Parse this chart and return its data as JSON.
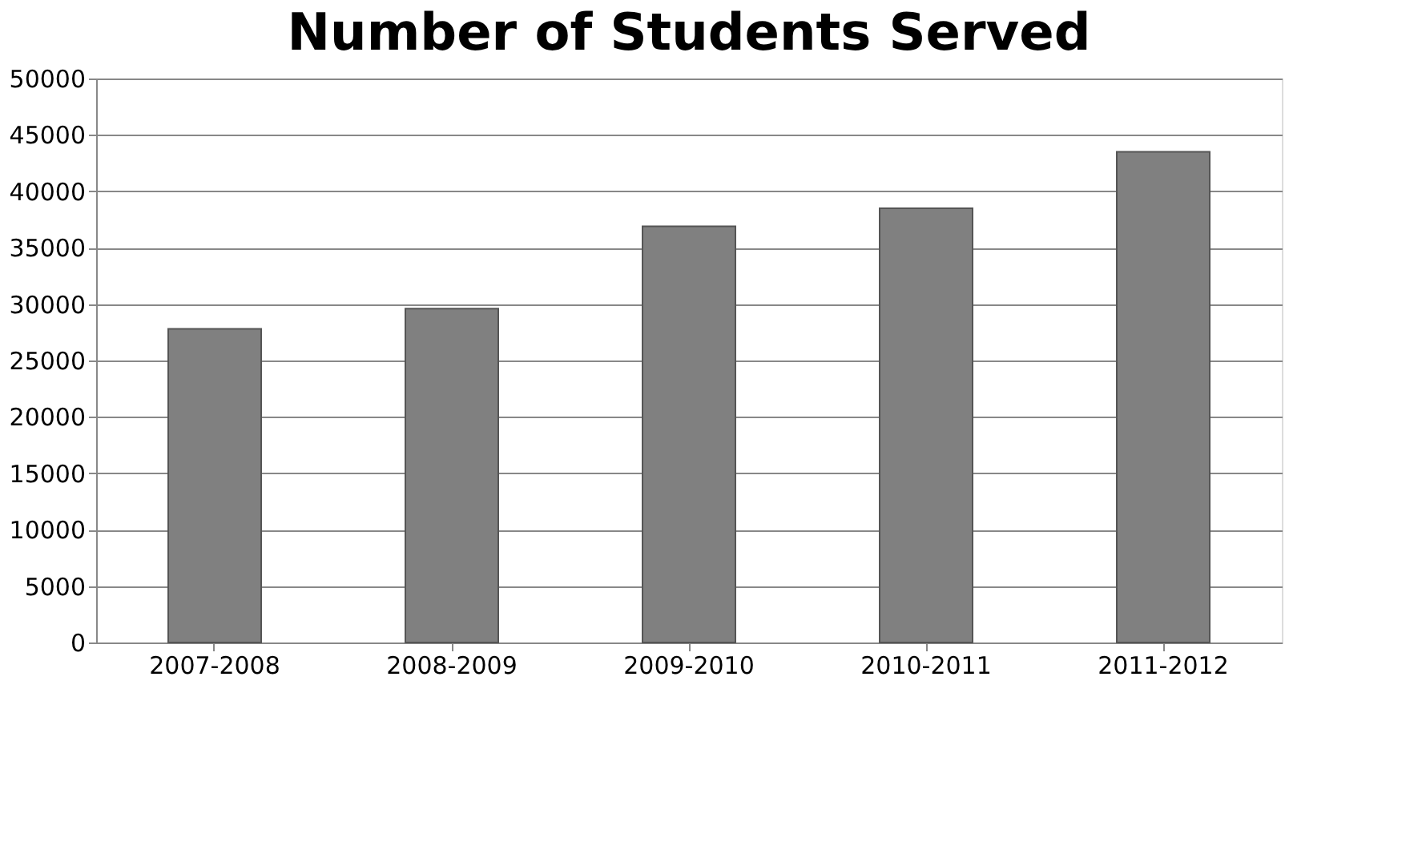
{
  "chart_data": {
    "type": "bar",
    "title": "Number of Students Served",
    "categories": [
      "2007-2008",
      "2008-2009",
      "2009-2010",
      "2010-2011",
      "2011-2012"
    ],
    "values": [
      27800,
      29600,
      36900,
      38500,
      43500
    ],
    "color": "#808080",
    "ylim": [
      0,
      50000
    ],
    "yticks": [
      0,
      5000,
      10000,
      15000,
      20000,
      25000,
      30000,
      35000,
      40000,
      45000,
      50000
    ],
    "grid": "y"
  }
}
